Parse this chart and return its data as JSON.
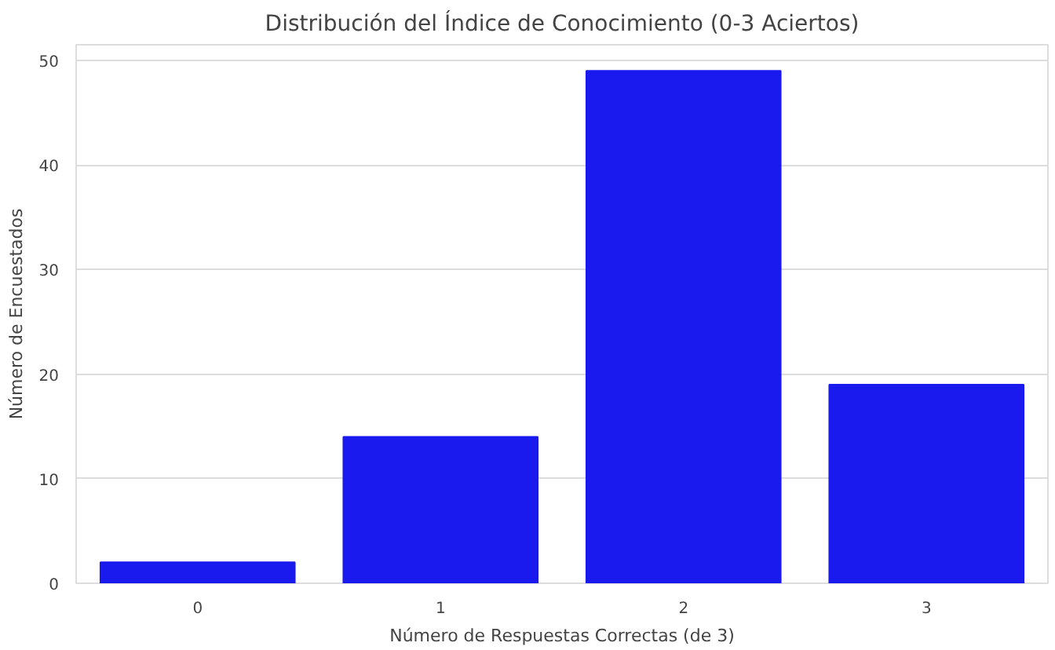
{
  "chart_data": {
    "type": "bar",
    "title": "Distribución del Índice de Conocimiento (0-3 Aciertos)",
    "xlabel": "Número de Respuestas Correctas (de 3)",
    "ylabel": "Número de Encuestados",
    "categories": [
      "0",
      "1",
      "2",
      "3"
    ],
    "values": [
      2,
      14,
      49,
      19
    ],
    "color": "#1a1aee",
    "ylim": [
      0,
      51.5
    ],
    "yticks": [
      0,
      10,
      20,
      30,
      40,
      50
    ],
    "grid": "y"
  }
}
